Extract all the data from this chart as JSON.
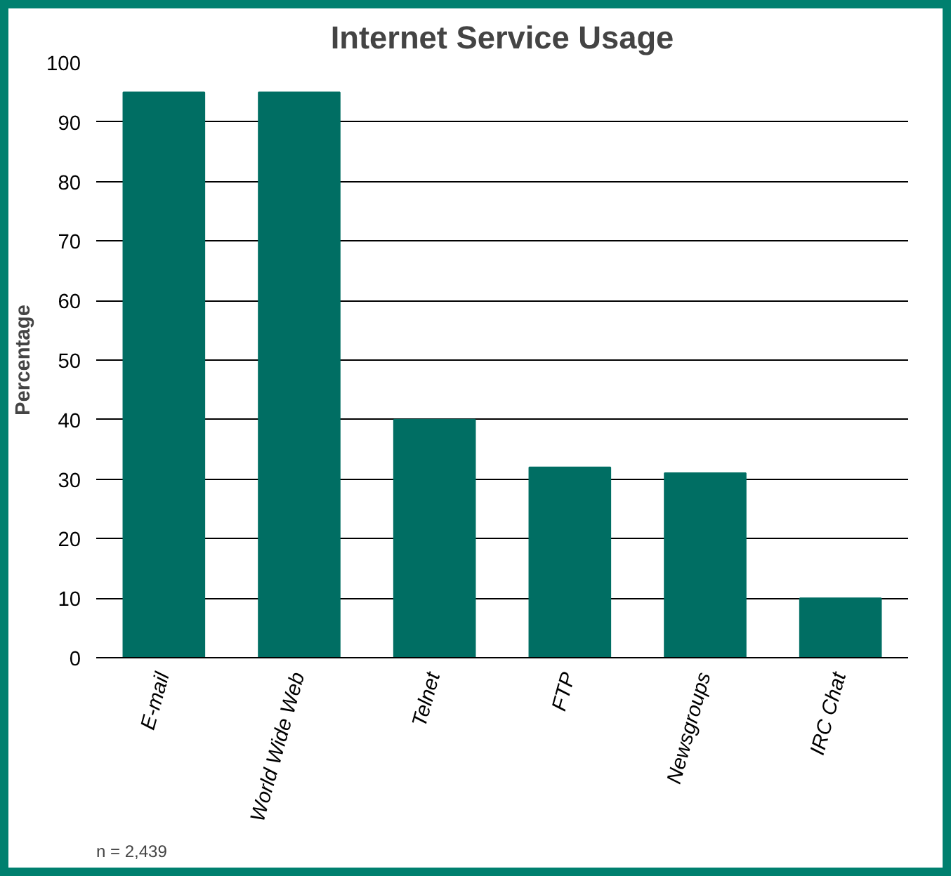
{
  "chart_data": {
    "type": "bar",
    "title": "Internet Service Usage",
    "ylabel": "Percentage",
    "categories": [
      "E-mail",
      "World Wide Web",
      "Telnet",
      "FTP",
      "Newsgroups",
      "IRC Chat"
    ],
    "values": [
      95,
      95,
      40,
      32,
      31,
      10
    ],
    "color": "#006e63",
    "ylim": [
      0,
      100
    ],
    "yticks": [
      0,
      10,
      20,
      30,
      40,
      50,
      60,
      70,
      80,
      90,
      100
    ],
    "grid": "y",
    "annotations": [
      "n = 2,439"
    ]
  }
}
